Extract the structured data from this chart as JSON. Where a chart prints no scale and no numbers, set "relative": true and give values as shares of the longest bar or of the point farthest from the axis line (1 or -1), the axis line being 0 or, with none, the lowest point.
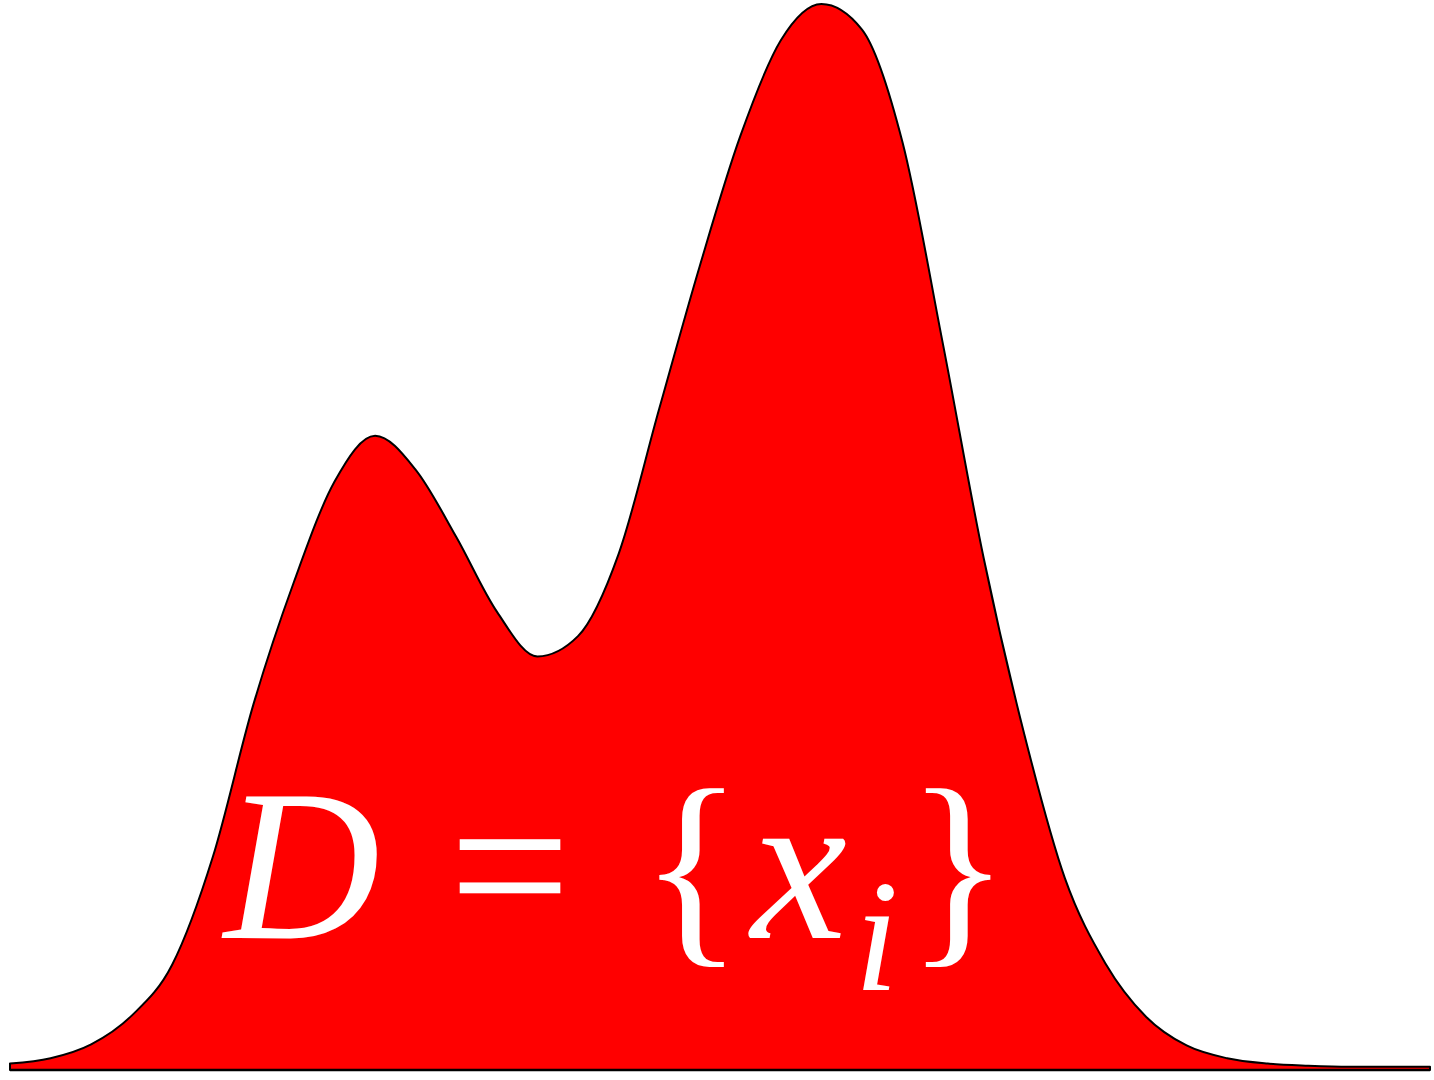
{
  "chart_data": {
    "type": "area",
    "relative": true,
    "categories": [
      null,
      null,
      null,
      null,
      null,
      null,
      null,
      null,
      null,
      null,
      null,
      null,
      null,
      null,
      null,
      null,
      null,
      null,
      null,
      null,
      null,
      null,
      null,
      null,
      null,
      null,
      null,
      null,
      null,
      null,
      null,
      null,
      null,
      null,
      null,
      null
    ],
    "series": [
      {
        "color": "#ff0000",
        "values": [
          0.006,
          0.011,
          0.024,
          0.051,
          0.099,
          0.2,
          0.343,
          0.458,
          0.552,
          0.595,
          0.563,
          0.5,
          0.43,
          0.388,
          0.407,
          0.484,
          0.62,
          0.754,
          0.876,
          0.966,
          1.0,
          0.976,
          0.87,
          0.68,
          0.48,
          0.315,
          0.18,
          0.1,
          0.05,
          0.023,
          0.011,
          0.006,
          0.004,
          0.003,
          0.003,
          0.003
        ]
      }
    ],
    "annotations": [
      "D = {x$_{i}$}"
    ]
  }
}
